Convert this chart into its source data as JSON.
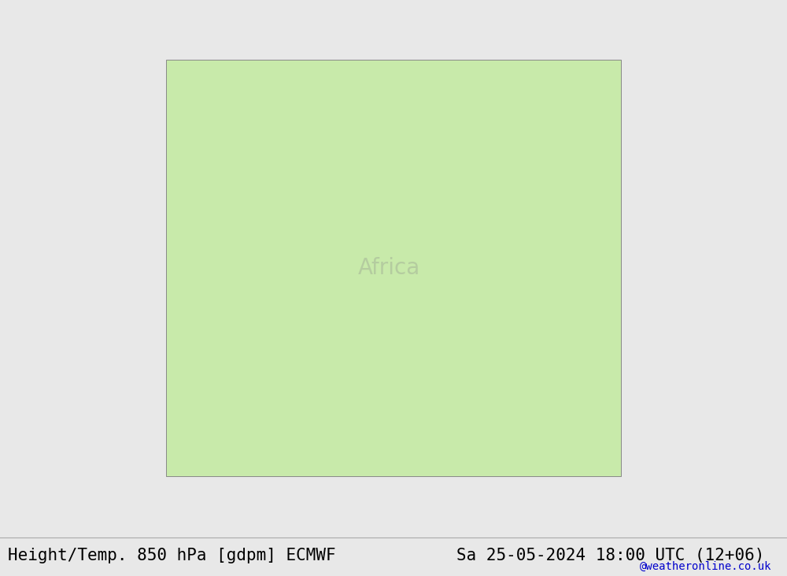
{
  "title_left": "Height/Temp. 850 hPa [gdpm] ECMWF",
  "title_right": "Sa 25-05-2024 18:00 UTC (12+06)",
  "watermark": "@weatheronline.co.uk",
  "bg_color": "#e8e8e8",
  "map_bg": "#d0d0d0",
  "land_color": "#c8eaaa",
  "ocean_color": "#ddeeff",
  "title_fontsize": 15,
  "watermark_fontsize": 10,
  "fig_width": 10.0,
  "fig_height": 7.33,
  "dpi": 100
}
